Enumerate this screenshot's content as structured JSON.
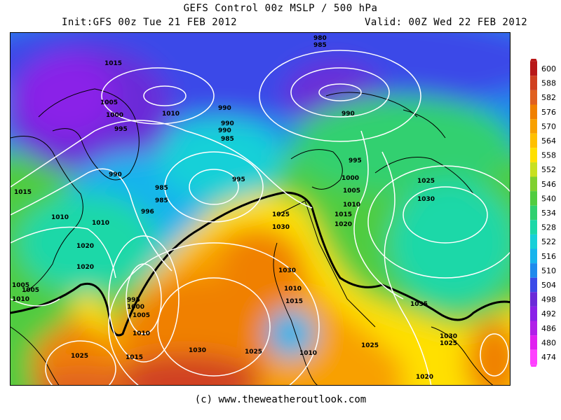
{
  "header": {
    "title": "GEFS Control 00z MSLP / 500 hPa",
    "init": "Init:GFS 00z Tue 21 FEB 2012",
    "valid": "Valid: 00Z Wed 22 FEB 2012"
  },
  "credit": "(c) www.theweatheroutlook.com",
  "colorbar": {
    "levels": [
      "474",
      "480",
      "486",
      "492",
      "498",
      "504",
      "510",
      "516",
      "522",
      "528",
      "534",
      "540",
      "546",
      "552",
      "558",
      "564",
      "570",
      "576",
      "582",
      "588",
      "600"
    ],
    "colors": [
      "#ff40ff",
      "#e020f0",
      "#b020e8",
      "#8a20e8",
      "#6a2ad8",
      "#3a4ae8",
      "#1e8aec",
      "#18b4ec",
      "#18d0d8",
      "#1cd8a8",
      "#30d070",
      "#50cc40",
      "#80d030",
      "#c8e020",
      "#ffe000",
      "#ffc000",
      "#f8a000",
      "#f08000",
      "#e06020",
      "#d04020",
      "#b81818"
    ]
  },
  "isobar_labels": [
    "1015",
    "1005",
    "1000",
    "995",
    "1010",
    "990",
    "985",
    "980",
    "985",
    "1015",
    "1010",
    "1010",
    "990",
    "990",
    "995",
    "985",
    "990",
    "996",
    "1000",
    "1005",
    "1010",
    "1015",
    "1020",
    "1025",
    "1030",
    "1020",
    "1005",
    "995",
    "1000",
    "1005",
    "1010",
    "1015",
    "1020",
    "1030",
    "1025",
    "1030",
    "1025",
    "1035",
    "1010",
    "1025",
    "1030",
    "1025",
    "1020",
    "1010",
    "1025",
    "1030",
    "985",
    "990",
    "995",
    "1005",
    "1010",
    "1015"
  ]
}
